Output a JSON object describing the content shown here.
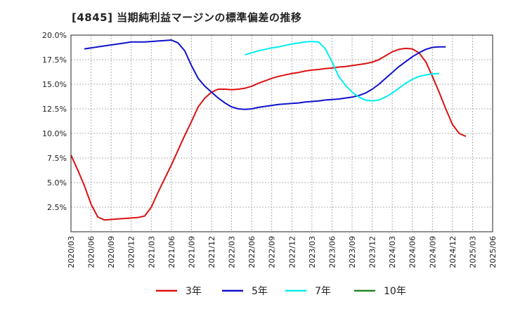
{
  "chart_data": {
    "type": "line",
    "title": "[4845]  当期純利益マージンの標準偏差の推移",
    "xlabel": "",
    "ylabel": "",
    "ylim": [
      0,
      20
    ],
    "grid": true,
    "legend_position": "bottom",
    "x_tick_labels": [
      "2020/03",
      "2020/06",
      "2020/09",
      "2020/12",
      "2021/03",
      "2021/06",
      "2021/09",
      "2021/12",
      "2022/03",
      "2022/06",
      "2022/09",
      "2022/12",
      "2023/03",
      "2023/06",
      "2023/09",
      "2023/12",
      "2024/03",
      "2024/06",
      "2024/09",
      "2024/12",
      "2025/03",
      "2025/06"
    ],
    "y_ticks": [
      {
        "value": 2.5,
        "label": "2.5%"
      },
      {
        "value": 5.0,
        "label": "5.0%"
      },
      {
        "value": 7.5,
        "label": "7.5%"
      },
      {
        "value": 10.0,
        "label": "10.0%"
      },
      {
        "value": 12.5,
        "label": "12.5%"
      },
      {
        "value": 15.0,
        "label": "15.0%"
      },
      {
        "value": 17.5,
        "label": "17.5%"
      },
      {
        "value": 20.0,
        "label": "20.0%"
      }
    ],
    "series": [
      {
        "name": "3年",
        "color": "#dd1111",
        "points": [
          [
            0,
            7.8
          ],
          [
            1,
            6.3
          ],
          [
            2,
            4.7
          ],
          [
            3,
            2.8
          ],
          [
            4,
            1.5
          ],
          [
            5,
            1.2
          ],
          [
            6,
            1.25
          ],
          [
            7,
            1.3
          ],
          [
            8,
            1.35
          ],
          [
            9,
            1.4
          ],
          [
            10,
            1.45
          ],
          [
            11,
            1.6
          ],
          [
            12,
            2.5
          ],
          [
            13,
            4.0
          ],
          [
            14,
            5.4
          ],
          [
            15,
            6.8
          ],
          [
            16,
            8.3
          ],
          [
            17,
            9.8
          ],
          [
            18,
            11.2
          ],
          [
            19,
            12.7
          ],
          [
            20,
            13.6
          ],
          [
            21,
            14.2
          ],
          [
            22,
            14.5
          ],
          [
            23,
            14.5
          ],
          [
            24,
            14.45
          ],
          [
            25,
            14.5
          ],
          [
            26,
            14.6
          ],
          [
            27,
            14.8
          ],
          [
            28,
            15.1
          ],
          [
            29,
            15.35
          ],
          [
            30,
            15.6
          ],
          [
            31,
            15.8
          ],
          [
            32,
            15.95
          ],
          [
            33,
            16.1
          ],
          [
            34,
            16.2
          ],
          [
            35,
            16.35
          ],
          [
            36,
            16.45
          ],
          [
            37,
            16.5
          ],
          [
            38,
            16.6
          ],
          [
            39,
            16.65
          ],
          [
            40,
            16.75
          ],
          [
            41,
            16.8
          ],
          [
            42,
            16.9
          ],
          [
            43,
            17.0
          ],
          [
            44,
            17.1
          ],
          [
            45,
            17.25
          ],
          [
            46,
            17.5
          ],
          [
            47,
            17.9
          ],
          [
            48,
            18.3
          ],
          [
            49,
            18.55
          ],
          [
            50,
            18.65
          ],
          [
            51,
            18.6
          ],
          [
            52,
            18.2
          ],
          [
            53,
            17.3
          ],
          [
            54,
            15.8
          ],
          [
            55,
            14.2
          ],
          [
            56,
            12.5
          ],
          [
            57,
            10.9
          ],
          [
            58,
            10.0
          ],
          [
            59,
            9.7
          ]
        ]
      },
      {
        "name": "5年",
        "color": "#1111cc",
        "points": [
          [
            2,
            18.6
          ],
          [
            3,
            18.7
          ],
          [
            4,
            18.8
          ],
          [
            5,
            18.9
          ],
          [
            6,
            19.0
          ],
          [
            7,
            19.1
          ],
          [
            8,
            19.2
          ],
          [
            9,
            19.3
          ],
          [
            10,
            19.3
          ],
          [
            11,
            19.3
          ],
          [
            12,
            19.35
          ],
          [
            13,
            19.4
          ],
          [
            14,
            19.45
          ],
          [
            15,
            19.5
          ],
          [
            16,
            19.2
          ],
          [
            17,
            18.4
          ],
          [
            18,
            16.9
          ],
          [
            19,
            15.6
          ],
          [
            20,
            14.8
          ],
          [
            21,
            14.2
          ],
          [
            22,
            13.6
          ],
          [
            23,
            13.1
          ],
          [
            24,
            12.7
          ],
          [
            25,
            12.5
          ],
          [
            26,
            12.45
          ],
          [
            27,
            12.5
          ],
          [
            28,
            12.65
          ],
          [
            29,
            12.75
          ],
          [
            30,
            12.85
          ],
          [
            31,
            12.95
          ],
          [
            32,
            13.0
          ],
          [
            33,
            13.05
          ],
          [
            34,
            13.1
          ],
          [
            35,
            13.2
          ],
          [
            36,
            13.25
          ],
          [
            37,
            13.3
          ],
          [
            38,
            13.4
          ],
          [
            39,
            13.45
          ],
          [
            40,
            13.5
          ],
          [
            41,
            13.6
          ],
          [
            42,
            13.7
          ],
          [
            43,
            13.85
          ],
          [
            44,
            14.1
          ],
          [
            45,
            14.5
          ],
          [
            46,
            15.0
          ],
          [
            47,
            15.6
          ],
          [
            48,
            16.2
          ],
          [
            49,
            16.8
          ],
          [
            50,
            17.3
          ],
          [
            51,
            17.8
          ],
          [
            52,
            18.2
          ],
          [
            53,
            18.55
          ],
          [
            54,
            18.75
          ],
          [
            55,
            18.8
          ],
          [
            56,
            18.8
          ]
        ]
      },
      {
        "name": "7年",
        "color": "#00eeee",
        "points": [
          [
            26,
            18.0
          ],
          [
            27,
            18.2
          ],
          [
            28,
            18.4
          ],
          [
            29,
            18.55
          ],
          [
            30,
            18.7
          ],
          [
            31,
            18.8
          ],
          [
            32,
            18.95
          ],
          [
            33,
            19.1
          ],
          [
            34,
            19.2
          ],
          [
            35,
            19.3
          ],
          [
            36,
            19.35
          ],
          [
            37,
            19.3
          ],
          [
            38,
            18.6
          ],
          [
            39,
            17.3
          ],
          [
            40,
            15.8
          ],
          [
            41,
            14.9
          ],
          [
            42,
            14.2
          ],
          [
            43,
            13.7
          ],
          [
            44,
            13.4
          ],
          [
            45,
            13.3
          ],
          [
            46,
            13.4
          ],
          [
            47,
            13.7
          ],
          [
            48,
            14.1
          ],
          [
            49,
            14.6
          ],
          [
            50,
            15.1
          ],
          [
            51,
            15.5
          ],
          [
            52,
            15.8
          ],
          [
            53,
            15.95
          ],
          [
            54,
            16.05
          ],
          [
            55,
            16.1
          ]
        ]
      },
      {
        "name": "10年",
        "color": "#228822",
        "points": []
      }
    ]
  }
}
